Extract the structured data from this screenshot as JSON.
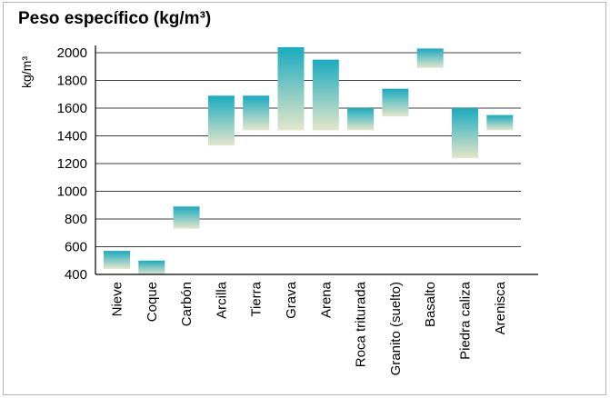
{
  "chart_data": {
    "type": "bar",
    "subtype": "floating-range",
    "title": "Peso específico",
    "title_unit": "(kg/m³)",
    "ylabel": "kg/m³",
    "xlabel": "",
    "ylim": [
      400,
      2000
    ],
    "yticks": [
      400,
      600,
      800,
      1000,
      1200,
      1400,
      1600,
      1800,
      2000
    ],
    "grid": true,
    "legend": "none",
    "categories": [
      "Nieve",
      "Coque",
      "Carbón",
      "Arcilla",
      "Tierra",
      "Grava",
      "Arena",
      "Roca triturada",
      "Granito (suelto)",
      "Basalto",
      "Piedra caliza",
      "Arenisca"
    ],
    "low": [
      440,
      400,
      730,
      1330,
      1440,
      1440,
      1440,
      1440,
      1540,
      1890,
      1240,
      1440
    ],
    "high": [
      570,
      500,
      890,
      1690,
      1690,
      2040,
      1950,
      1600,
      1740,
      2030,
      1600,
      1550
    ],
    "colors": {
      "top": "#1aabbf",
      "bottom": "#e4e6ca"
    }
  }
}
